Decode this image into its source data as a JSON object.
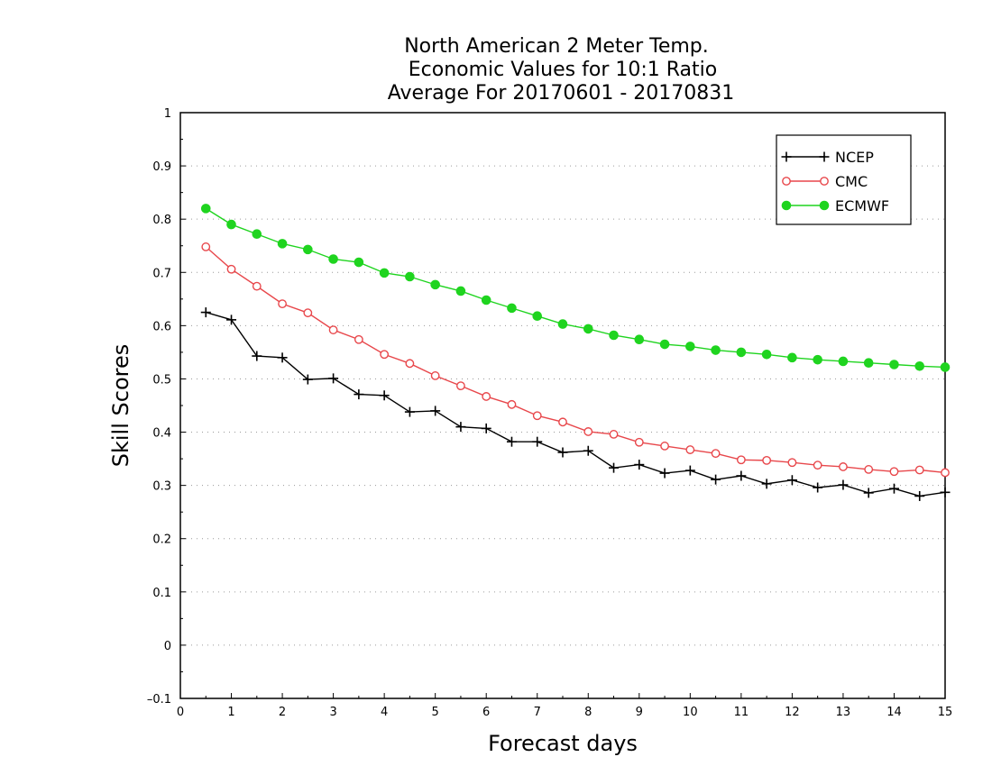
{
  "chart_data": {
    "type": "line",
    "title_lines": [
      "North American 2 Meter Temp.",
      "Economic Values for 10:1 Ratio",
      "Average For 20170601 - 20170831"
    ],
    "xlabel": "Forecast days",
    "ylabel": "Skill Scores",
    "xlim": [
      0,
      15
    ],
    "ylim": [
      -0.1,
      1
    ],
    "x_ticks": [
      0,
      1,
      2,
      3,
      4,
      5,
      6,
      7,
      8,
      9,
      10,
      11,
      12,
      13,
      14,
      15
    ],
    "y_ticks": [
      -0.1,
      0,
      0.1,
      0.2,
      0.3,
      0.4,
      0.5,
      0.6,
      0.7,
      0.8,
      0.9,
      1
    ],
    "y_tick_labels": [
      "–0.1",
      "0",
      "0.1",
      "0.2",
      "0.3",
      "0.4",
      "0.5",
      "0.6",
      "0.7",
      "0.8",
      "0.9",
      "1"
    ],
    "grid": "horizontal dotted",
    "legend_position": "top-right",
    "x": [
      0.5,
      1,
      1.5,
      2,
      2.5,
      3,
      3.5,
      4,
      4.5,
      5,
      5.5,
      6,
      6.5,
      7,
      7.5,
      8,
      8.5,
      9,
      9.5,
      10,
      10.5,
      11,
      11.5,
      12,
      12.5,
      13,
      13.5,
      14,
      14.5,
      15
    ],
    "series": [
      {
        "name": "NCEP",
        "color": "#000000",
        "marker": "plus",
        "values": [
          0.625,
          0.611,
          0.543,
          0.54,
          0.499,
          0.501,
          0.471,
          0.469,
          0.438,
          0.44,
          0.41,
          0.407,
          0.382,
          0.382,
          0.362,
          0.365,
          0.333,
          0.339,
          0.323,
          0.328,
          0.311,
          0.318,
          0.303,
          0.31,
          0.296,
          0.301,
          0.286,
          0.294,
          0.28,
          0.287
        ]
      },
      {
        "name": "CMC",
        "color": "#e8474b",
        "marker": "open-circle",
        "values": [
          0.748,
          0.706,
          0.674,
          0.641,
          0.624,
          0.592,
          0.574,
          0.546,
          0.529,
          0.506,
          0.487,
          0.467,
          0.452,
          0.431,
          0.419,
          0.401,
          0.396,
          0.381,
          0.374,
          0.367,
          0.36,
          0.348,
          0.347,
          0.343,
          0.338,
          0.335,
          0.33,
          0.326,
          0.329,
          0.324
        ]
      },
      {
        "name": "ECMWF",
        "color": "#1fd41f",
        "marker": "filled-circle",
        "values": [
          0.82,
          0.79,
          0.772,
          0.754,
          0.743,
          0.725,
          0.719,
          0.699,
          0.692,
          0.677,
          0.665,
          0.648,
          0.633,
          0.618,
          0.603,
          0.594,
          0.582,
          0.574,
          0.565,
          0.561,
          0.554,
          0.55,
          0.546,
          0.54,
          0.536,
          0.533,
          0.53,
          0.527,
          0.524,
          0.522
        ]
      }
    ]
  }
}
